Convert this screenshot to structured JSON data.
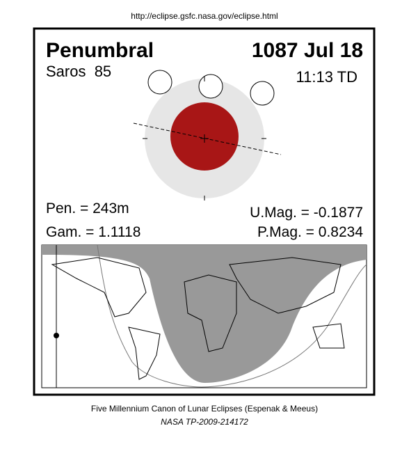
{
  "header": {
    "url": "http://eclipse.gsfc.nasa.gov/eclipse.html"
  },
  "panel": {
    "type_label": "Penumbral",
    "date": "1087 Jul 18",
    "saros": "Saros  85",
    "time": "11:13 TD",
    "pen": "Pen. = 243m",
    "gam": "Gam. = 1.1118",
    "umag": "U.Mag. = -0.1877",
    "pmag": "P.Mag. = 0.8234"
  },
  "footer": {
    "line1": "Five Millennium Canon of Lunar Eclipses (Espenak & Meeus)",
    "line2": "NASA TP-2009-214172"
  }
}
